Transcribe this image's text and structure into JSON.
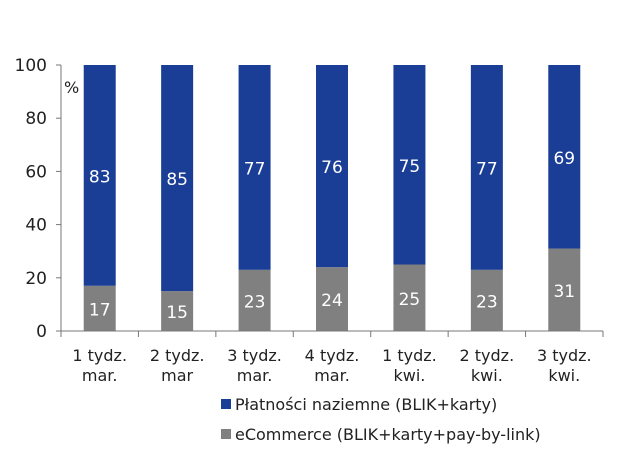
{
  "chart_data": {
    "type": "bar",
    "stacked": true,
    "unit": "%",
    "categories": [
      [
        "1 tydz.",
        "mar."
      ],
      [
        "2 tydz.",
        "mar"
      ],
      [
        "3 tydz.",
        "mar."
      ],
      [
        "4 tydz.",
        "mar."
      ],
      [
        "1 tydz.",
        "kwi."
      ],
      [
        "2 tydz.",
        "kwi."
      ],
      [
        "3 tydz.",
        "kwi."
      ]
    ],
    "series": [
      {
        "name": "eCommerce (BLIK+karty+pay-by-link)",
        "color": "#808080",
        "values": [
          17,
          15,
          23,
          24,
          25,
          23,
          31
        ]
      },
      {
        "name": "Płatności naziemne (BLIK+karty)",
        "color": "#1a3d96",
        "values": [
          83,
          85,
          77,
          76,
          75,
          77,
          69
        ]
      }
    ],
    "ylim": [
      0,
      100
    ],
    "yticks": [
      0,
      20,
      40,
      60,
      80,
      100
    ],
    "legend_order": [
      1,
      0
    ],
    "legend_position": "bottom",
    "grid": false
  }
}
